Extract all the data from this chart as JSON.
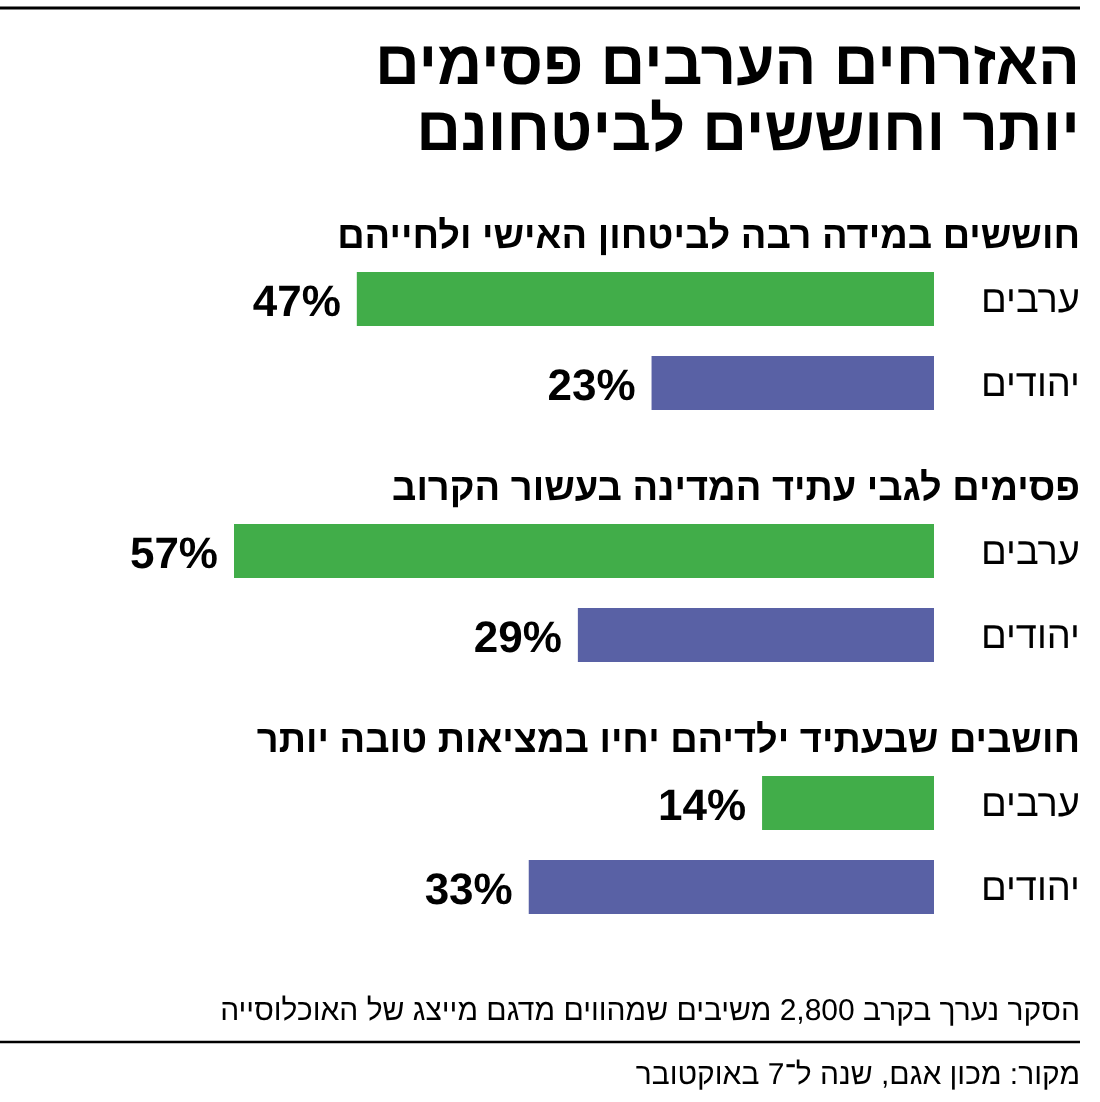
{
  "chart_data": [
    {
      "type": "other",
      "title": "האזרחים הערבים פסימים\nיותר וחוששים לביטחונם"
    },
    {
      "type": "bar",
      "orientation": "horizontal",
      "title": "חוששים במידה רבה לביטחון האישי ולחייהם",
      "categories": [
        "ערבים",
        "יהודים"
      ],
      "values": [
        47,
        23
      ],
      "colors": [
        "#41ad49",
        "#5961a5"
      ],
      "value_labels": [
        "47%",
        "23%"
      ]
    },
    {
      "type": "bar",
      "orientation": "horizontal",
      "title": "פסימים לגבי עתיד המדינה בעשור הקרוב",
      "categories": [
        "ערבים",
        "יהודים"
      ],
      "values": [
        57,
        29
      ],
      "colors": [
        "#41ad49",
        "#5961a5"
      ],
      "value_labels": [
        "57%",
        "29%"
      ]
    },
    {
      "type": "bar",
      "orientation": "horizontal",
      "title": "חושבים שבעתיד ילדיהם יחיו במציאות טובה יותר",
      "categories": [
        "ערבים",
        "יהודים"
      ],
      "values": [
        14,
        33
      ],
      "colors": [
        "#41ad49",
        "#5961a5"
      ],
      "value_labels": [
        "14%",
        "33%"
      ],
      "annotations": [
        "הסקר נערך בקרב 2,800 משיבים שמהווים מדגם מייצג של האוכלוסייה",
        "מקור: מכון אגם, שנה ל־7 באוקטובר"
      ]
    }
  ]
}
